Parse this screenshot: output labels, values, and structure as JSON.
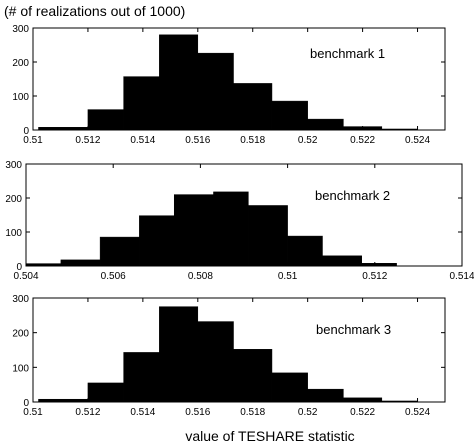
{
  "figure": {
    "top_label": "(# of realizations out of 1000)",
    "xlabel": "value of TESHARE statistic"
  },
  "chart_data": [
    {
      "type": "bar",
      "annotation": "benchmark 1",
      "bin_edges": [
        0.5102,
        0.512,
        0.5133,
        0.5146,
        0.516,
        0.5173,
        0.5187,
        0.52,
        0.5213,
        0.5227,
        0.524
      ],
      "values": [
        8,
        60,
        157,
        280,
        226,
        137,
        85,
        32,
        10,
        3
      ],
      "xlim": [
        0.51,
        0.525
      ],
      "ylim": [
        0,
        300
      ],
      "xticks": [
        0.51,
        0.512,
        0.514,
        0.516,
        0.518,
        0.52,
        0.522,
        0.524
      ],
      "xtick_labels": [
        "0.51",
        "0.512",
        "0.514",
        "0.516",
        "0.518",
        "0.52",
        "0.522",
        "0.524"
      ],
      "yticks": [
        0,
        100,
        200,
        300
      ],
      "ytick_labels": [
        "0",
        "100",
        "200",
        "300"
      ]
    },
    {
      "type": "bar",
      "annotation": "benchmark 2",
      "bin_edges": [
        0.504,
        0.5048,
        0.5057,
        0.5066,
        0.5074,
        0.5083,
        0.5091,
        0.51,
        0.5108,
        0.5117,
        0.5125
      ],
      "values": [
        7,
        18,
        85,
        148,
        210,
        218,
        178,
        88,
        30,
        8
      ],
      "xlim": [
        0.504,
        0.514
      ],
      "ylim": [
        0,
        300
      ],
      "xticks": [
        0.504,
        0.506,
        0.508,
        0.51,
        0.512,
        0.514
      ],
      "xtick_labels": [
        "0.504",
        "0.506",
        "0.508",
        "0.51",
        "0.512",
        "0.514"
      ],
      "yticks": [
        0,
        100,
        200,
        300
      ],
      "ytick_labels": [
        "0",
        "100",
        "200",
        "300"
      ]
    },
    {
      "type": "bar",
      "annotation": "benchmark 3",
      "bin_edges": [
        0.5102,
        0.512,
        0.5133,
        0.5146,
        0.516,
        0.5173,
        0.5187,
        0.52,
        0.5213,
        0.5227,
        0.524
      ],
      "values": [
        8,
        55,
        143,
        275,
        232,
        152,
        84,
        37,
        12,
        3
      ],
      "xlim": [
        0.51,
        0.525
      ],
      "ylim": [
        0,
        300
      ],
      "xticks": [
        0.51,
        0.512,
        0.514,
        0.516,
        0.518,
        0.52,
        0.522,
        0.524
      ],
      "xtick_labels": [
        "0.51",
        "0.512",
        "0.514",
        "0.516",
        "0.518",
        "0.52",
        "0.522",
        "0.524"
      ],
      "yticks": [
        0,
        100,
        200,
        300
      ],
      "ytick_labels": [
        "0",
        "100",
        "200",
        "300"
      ]
    }
  ]
}
